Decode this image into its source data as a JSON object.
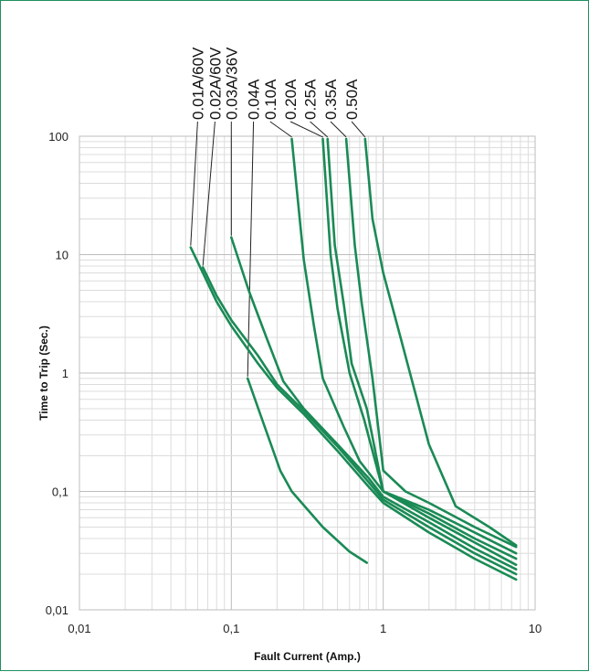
{
  "chart_data": {
    "type": "line",
    "xlabel": "Fault Current (Amp.)",
    "ylabel": "Time to Trip (Sec.)",
    "xscale": "log",
    "yscale": "log",
    "xlim": [
      0.01,
      10
    ],
    "ylim": [
      0.01,
      100
    ],
    "x_ticks": [
      0.01,
      0.1,
      1,
      10
    ],
    "y_ticks": [
      0.01,
      0.1,
      1,
      10,
      100
    ],
    "x_tick_labels": [
      "0,01",
      "0,1",
      "1",
      "10"
    ],
    "y_tick_labels": [
      "0,01",
      "0,1",
      "1",
      "10",
      "100"
    ],
    "grid": true,
    "line_color": "#1a8a55",
    "leader_color": "#222222",
    "series": [
      {
        "name": "0.01A/60V",
        "label_x": 0.06,
        "points": [
          [
            0.054,
            11.5
          ],
          [
            0.065,
            7.0
          ],
          [
            0.08,
            4.0
          ],
          [
            0.1,
            2.5
          ],
          [
            0.15,
            1.2
          ],
          [
            0.2,
            0.75
          ],
          [
            0.3,
            0.45
          ],
          [
            0.5,
            0.22
          ],
          [
            0.8,
            0.11
          ],
          [
            1.0,
            0.08
          ],
          [
            2.0,
            0.045
          ],
          [
            4.0,
            0.027
          ],
          [
            7.5,
            0.018
          ]
        ]
      },
      {
        "name": "0.02A/60V",
        "label_x": 0.078,
        "points": [
          [
            0.065,
            7.8
          ],
          [
            0.08,
            4.5
          ],
          [
            0.1,
            2.8
          ],
          [
            0.15,
            1.4
          ],
          [
            0.2,
            0.8
          ],
          [
            0.3,
            0.48
          ],
          [
            0.5,
            0.24
          ],
          [
            0.8,
            0.12
          ],
          [
            1.0,
            0.085
          ],
          [
            2.0,
            0.05
          ],
          [
            4.0,
            0.03
          ],
          [
            7.5,
            0.02
          ]
        ]
      },
      {
        "name": "0.03A/36V",
        "label_x": 0.1,
        "points": [
          [
            0.1,
            14.0
          ],
          [
            0.13,
            5.0
          ],
          [
            0.17,
            2.0
          ],
          [
            0.22,
            0.85
          ],
          [
            0.3,
            0.5
          ],
          [
            0.5,
            0.25
          ],
          [
            0.8,
            0.13
          ],
          [
            1.0,
            0.09
          ],
          [
            2.0,
            0.055
          ],
          [
            4.0,
            0.033
          ],
          [
            7.5,
            0.022
          ]
        ]
      },
      {
        "name": "0.04A",
        "label_x": 0.14,
        "points": [
          [
            0.128,
            0.9
          ],
          [
            0.16,
            0.4
          ],
          [
            0.21,
            0.15
          ],
          [
            0.25,
            0.1
          ],
          [
            0.4,
            0.05
          ],
          [
            0.6,
            0.031
          ],
          [
            0.78,
            0.025
          ]
        ]
      },
      {
        "name": "0.10A",
        "label_x": 0.18,
        "points": [
          [
            0.25,
            95.0
          ],
          [
            0.3,
            9.0
          ],
          [
            0.35,
            2.5
          ],
          [
            0.4,
            0.9
          ],
          [
            0.55,
            0.35
          ],
          [
            0.7,
            0.18
          ],
          [
            1.0,
            0.1
          ],
          [
            2.0,
            0.06
          ],
          [
            4.0,
            0.037
          ],
          [
            7.5,
            0.024
          ]
        ]
      },
      {
        "name": "0.20A",
        "label_x": 0.245,
        "points": [
          [
            0.4,
            95.0
          ],
          [
            0.45,
            10.0
          ],
          [
            0.5,
            3.5
          ],
          [
            0.6,
            1.0
          ],
          [
            0.75,
            0.4
          ],
          [
            1.0,
            0.1
          ],
          [
            2.0,
            0.065
          ],
          [
            4.0,
            0.04
          ],
          [
            7.5,
            0.027
          ]
        ]
      },
      {
        "name": "0.25A",
        "label_x": 0.33,
        "points": [
          [
            0.43,
            95.0
          ],
          [
            0.48,
            12.0
          ],
          [
            0.55,
            3.8
          ],
          [
            0.62,
            1.2
          ],
          [
            0.78,
            0.5
          ],
          [
            1.0,
            0.1
          ],
          [
            2.0,
            0.07
          ],
          [
            4.0,
            0.045
          ],
          [
            7.5,
            0.03
          ]
        ]
      },
      {
        "name": "0.35A",
        "label_x": 0.45,
        "points": [
          [
            0.57,
            95.0
          ],
          [
            0.65,
            12.0
          ],
          [
            0.72,
            4.0
          ],
          [
            0.85,
            0.9
          ],
          [
            1.0,
            0.15
          ],
          [
            1.4,
            0.1
          ],
          [
            2.0,
            0.08
          ],
          [
            4.0,
            0.05
          ],
          [
            7.5,
            0.034
          ]
        ]
      },
      {
        "name": "0.50A",
        "label_x": 0.62,
        "points": [
          [
            0.76,
            95.0
          ],
          [
            0.85,
            20.0
          ],
          [
            1.0,
            7.0
          ],
          [
            1.3,
            2.0
          ],
          [
            2.0,
            0.25
          ],
          [
            3.0,
            0.075
          ],
          [
            5.0,
            0.05
          ],
          [
            7.5,
            0.035
          ]
        ]
      }
    ]
  }
}
